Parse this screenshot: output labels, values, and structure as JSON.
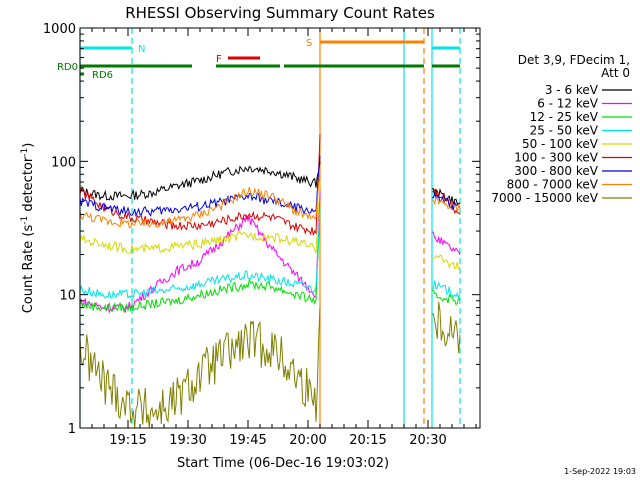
{
  "chart_data": {
    "type": "line",
    "title": "RHESSI Observing Summary Count Rates",
    "xlabel": "Start Time (06-Dec-16 19:03:02)",
    "ylabel_main": "Count Rate (s",
    "ylabel_sup1": "-1",
    "ylabel_mid": " detector",
    "ylabel_sup2": "-1",
    "ylabel_end": ")",
    "x_unit": "minutes since 19:03:02",
    "xlim": [
      0,
      100
    ],
    "ylim": [
      1,
      1000
    ],
    "y_scale": "log",
    "x_ticks": [
      {
        "value": 12,
        "label": "19:15"
      },
      {
        "value": 27,
        "label": "19:30"
      },
      {
        "value": 42,
        "label": "19:45"
      },
      {
        "value": 57,
        "label": "20:00"
      },
      {
        "value": 72,
        "label": "20:15"
      },
      {
        "value": 87,
        "label": "20:30"
      }
    ],
    "y_ticks": [
      {
        "value": 1,
        "label": "1"
      },
      {
        "value": 10,
        "label": "10"
      },
      {
        "value": 100,
        "label": "100"
      },
      {
        "value": 1000,
        "label": "1000"
      }
    ],
    "legend": {
      "position": "right",
      "header1": "Det 3,9, FDecim 1,",
      "header2": "Att 0",
      "entries": [
        "3 - 6 keV",
        "6 - 12 keV",
        "12 - 25 keV",
        "25 - 50 keV",
        "50 - 100 keV",
        "100 - 300 keV",
        "300 - 800 keV",
        "800 - 7000 keV",
        "7000 - 15000 keV"
      ]
    },
    "flags": [
      {
        "label": "N",
        "color": "#00e5e5",
        "segments": [
          [
            0,
            13
          ],
          [
            88,
            95
          ]
        ]
      },
      {
        "label": "F",
        "color": "#e00000",
        "segments": [
          [
            37,
            45
          ]
        ]
      },
      {
        "label": "S",
        "color": "#ff8000",
        "segments": [
          [
            60,
            86
          ]
        ]
      },
      {
        "label": "RD0",
        "color": "#007a00",
        "segments": [
          [
            0,
            28
          ],
          [
            34,
            50
          ],
          [
            51,
            86
          ],
          [
            88,
            95
          ]
        ]
      },
      {
        "label": "RD6",
        "color": "#007a00",
        "segments": [
          [
            0,
            1
          ]
        ]
      }
    ],
    "vertical_lines": [
      {
        "x": 0,
        "color": "#00e5e5",
        "style": "solid"
      },
      {
        "x": 13,
        "color": "#00e5e5",
        "style": "dashed"
      },
      {
        "x": 60,
        "color": "#ff8000",
        "style": "solid"
      },
      {
        "x": 81,
        "color": "#00e5e5",
        "style": "solid"
      },
      {
        "x": 86,
        "color": "#ff8000",
        "style": "dashed"
      },
      {
        "x": 88,
        "color": "#00e5e5",
        "style": "solid"
      },
      {
        "x": 95,
        "color": "#00e5e5",
        "style": "dashed"
      }
    ],
    "series": [
      {
        "name": "3 - 6 keV",
        "color": "#000000",
        "x": [
          0,
          6,
          12,
          18,
          24,
          30,
          36,
          42,
          48,
          54,
          59,
          60,
          88,
          91,
          95
        ],
        "y": [
          60,
          55,
          55,
          58,
          65,
          72,
          82,
          90,
          85,
          75,
          68,
          100,
          60,
          55,
          48
        ]
      },
      {
        "name": "6 - 12 keV",
        "color": "#ff00ff",
        "x": [
          0,
          6,
          12,
          18,
          24,
          30,
          36,
          42,
          48,
          54,
          59,
          60,
          88,
          91,
          95
        ],
        "y": [
          9,
          8,
          8,
          11,
          15,
          18,
          26,
          38,
          22,
          14,
          10,
          60,
          28,
          24,
          20
        ]
      },
      {
        "name": "12 - 25 keV",
        "color": "#00e000",
        "x": [
          0,
          6,
          12,
          18,
          24,
          30,
          36,
          42,
          48,
          54,
          59,
          60,
          88,
          91,
          95
        ],
        "y": [
          8.5,
          8,
          8,
          8.5,
          9,
          10,
          11,
          12,
          11.5,
          10,
          9,
          40,
          10,
          9.5,
          9
        ]
      },
      {
        "name": "25 - 50 keV",
        "color": "#00e5e5",
        "x": [
          0,
          6,
          12,
          18,
          24,
          30,
          36,
          42,
          48,
          54,
          59,
          60,
          88,
          91,
          95
        ],
        "y": [
          11,
          10,
          10,
          10.5,
          11,
          12,
          13,
          14,
          13,
          12,
          11,
          45,
          12,
          11,
          10
        ]
      },
      {
        "name": "50 - 100 keV",
        "color": "#d8d800",
        "x": [
          0,
          6,
          12,
          18,
          24,
          30,
          36,
          42,
          48,
          54,
          59,
          60,
          88,
          91,
          95
        ],
        "y": [
          26,
          24,
          22,
          22,
          23,
          24,
          26,
          28,
          27,
          25,
          22,
          70,
          20,
          18,
          16
        ]
      },
      {
        "name": "100 - 300 keV",
        "color": "#e00000",
        "x": [
          0,
          6,
          12,
          18,
          24,
          30,
          36,
          42,
          48,
          54,
          59,
          60,
          88,
          91,
          95
        ],
        "y": [
          60,
          45,
          38,
          35,
          33,
          33,
          36,
          40,
          38,
          32,
          30,
          160,
          62,
          55,
          40
        ]
      },
      {
        "name": "300 - 800 keV",
        "color": "#0000e0",
        "x": [
          0,
          6,
          12,
          18,
          24,
          30,
          36,
          42,
          48,
          54,
          59,
          60,
          88,
          91,
          95
        ],
        "y": [
          50,
          45,
          42,
          42,
          44,
          46,
          50,
          55,
          50,
          45,
          42,
          110,
          55,
          50,
          45
        ]
      },
      {
        "name": "800 - 7000 keV",
        "color": "#ff8000",
        "x": [
          0,
          6,
          12,
          18,
          24,
          30,
          36,
          42,
          48,
          54,
          59,
          60,
          88,
          91,
          95
        ],
        "y": [
          40,
          36,
          34,
          34,
          36,
          40,
          48,
          60,
          55,
          42,
          36,
          90,
          52,
          48,
          44
        ]
      },
      {
        "name": "7000 - 15000 keV",
        "color": "#808000",
        "x": [
          0,
          6,
          12,
          18,
          24,
          30,
          36,
          42,
          48,
          54,
          59,
          60,
          88,
          91,
          95
        ],
        "y": [
          4,
          2.2,
          1.5,
          1.3,
          1.6,
          2.5,
          3.5,
          4.5,
          4,
          2.5,
          1.6,
          8,
          7,
          6,
          5
        ]
      }
    ]
  },
  "timestamp": "1-Sep-2022 19:03"
}
